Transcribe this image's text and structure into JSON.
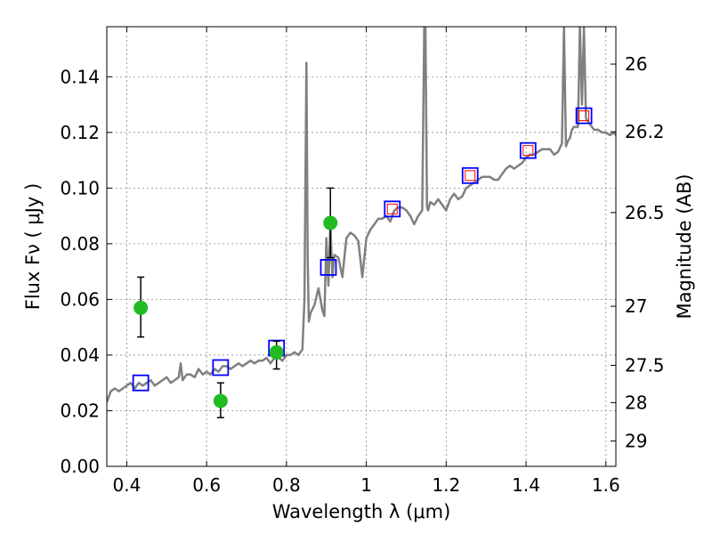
{
  "chart_data": {
    "type": "scatter",
    "title": "",
    "xlabel": "Wavelength  λ (μm)",
    "ylabel": "Flux  Fν  ( μJy )",
    "ylabel_right": "Magnitude (AB)",
    "xlim": [
      0.35,
      1.625
    ],
    "ylim": [
      0.0,
      0.158
    ],
    "grid": true,
    "x_ticks": [
      {
        "value": 0.4,
        "label": "0.4"
      },
      {
        "value": 0.6,
        "label": "0.6"
      },
      {
        "value": 0.8,
        "label": "0.8"
      },
      {
        "value": 1.0,
        "label": "1"
      },
      {
        "value": 1.2,
        "label": "1.2"
      },
      {
        "value": 1.4,
        "label": "1.4"
      },
      {
        "value": 1.6,
        "label": "1.6"
      }
    ],
    "y_ticks": [
      {
        "value": 0.0,
        "label": "0.00"
      },
      {
        "value": 0.02,
        "label": "0.02"
      },
      {
        "value": 0.04,
        "label": "0.04"
      },
      {
        "value": 0.06,
        "label": "0.06"
      },
      {
        "value": 0.08,
        "label": "0.08"
      },
      {
        "value": 0.1,
        "label": "0.10"
      },
      {
        "value": 0.12,
        "label": "0.12"
      },
      {
        "value": 0.14,
        "label": "0.14"
      }
    ],
    "mag_ticks": [
      {
        "value": 26.0,
        "label": "26"
      },
      {
        "value": 26.2,
        "label": "26.2"
      },
      {
        "value": 26.5,
        "label": "26.5"
      },
      {
        "value": 27.0,
        "label": "27"
      },
      {
        "value": 27.5,
        "label": "27.5"
      },
      {
        "value": 28.0,
        "label": "28"
      },
      {
        "value": 29.0,
        "label": "29"
      }
    ],
    "colors": {
      "sed": "#808080",
      "observed": "#22bb22",
      "model_box": "#0000ff",
      "model_box_inner": "#ff0000",
      "errorbar": "#000000",
      "grid": "#888888"
    },
    "sed_spectrum": {
      "x": [
        0.35,
        0.36,
        0.37,
        0.38,
        0.39,
        0.4,
        0.41,
        0.42,
        0.43,
        0.44,
        0.45,
        0.46,
        0.47,
        0.48,
        0.49,
        0.5,
        0.51,
        0.52,
        0.53,
        0.535,
        0.54,
        0.55,
        0.56,
        0.57,
        0.58,
        0.59,
        0.6,
        0.61,
        0.62,
        0.63,
        0.64,
        0.65,
        0.66,
        0.67,
        0.68,
        0.69,
        0.7,
        0.71,
        0.72,
        0.73,
        0.74,
        0.75,
        0.76,
        0.77,
        0.78,
        0.79,
        0.8,
        0.81,
        0.82,
        0.83,
        0.84,
        0.845,
        0.85,
        0.853,
        0.856,
        0.86,
        0.87,
        0.88,
        0.89,
        0.895,
        0.9,
        0.905,
        0.91,
        0.915,
        0.92,
        0.93,
        0.94,
        0.95,
        0.96,
        0.97,
        0.98,
        0.99,
        1.0,
        1.01,
        1.02,
        1.03,
        1.04,
        1.05,
        1.06,
        1.07,
        1.08,
        1.09,
        1.1,
        1.11,
        1.12,
        1.13,
        1.14,
        1.145,
        1.148,
        1.152,
        1.155,
        1.16,
        1.17,
        1.18,
        1.19,
        1.2,
        1.21,
        1.22,
        1.23,
        1.24,
        1.25,
        1.26,
        1.27,
        1.28,
        1.29,
        1.3,
        1.31,
        1.32,
        1.33,
        1.34,
        1.35,
        1.36,
        1.37,
        1.38,
        1.39,
        1.4,
        1.41,
        1.42,
        1.43,
        1.44,
        1.45,
        1.46,
        1.47,
        1.48,
        1.49,
        1.495,
        1.5,
        1.505,
        1.51,
        1.515,
        1.52,
        1.53,
        1.535,
        1.54,
        1.545,
        1.55,
        1.56,
        1.57,
        1.58,
        1.59,
        1.6,
        1.61,
        1.62,
        1.625
      ],
      "y": [
        0.023,
        0.027,
        0.028,
        0.027,
        0.028,
        0.029,
        0.03,
        0.028,
        0.03,
        0.029,
        0.03,
        0.031,
        0.029,
        0.03,
        0.031,
        0.032,
        0.03,
        0.031,
        0.032,
        0.037,
        0.031,
        0.033,
        0.033,
        0.032,
        0.035,
        0.033,
        0.034,
        0.033,
        0.035,
        0.034,
        0.036,
        0.036,
        0.035,
        0.036,
        0.037,
        0.036,
        0.037,
        0.038,
        0.037,
        0.038,
        0.038,
        0.039,
        0.037,
        0.039,
        0.039,
        0.038,
        0.04,
        0.04,
        0.041,
        0.04,
        0.042,
        0.06,
        0.145,
        0.075,
        0.052,
        0.055,
        0.058,
        0.064,
        0.056,
        0.054,
        0.082,
        0.065,
        0.087,
        0.068,
        0.076,
        0.075,
        0.068,
        0.082,
        0.084,
        0.083,
        0.081,
        0.068,
        0.082,
        0.085,
        0.087,
        0.089,
        0.089,
        0.09,
        0.088,
        0.092,
        0.093,
        0.093,
        0.092,
        0.09,
        0.087,
        0.09,
        0.092,
        0.158,
        0.158,
        0.093,
        0.092,
        0.095,
        0.094,
        0.096,
        0.094,
        0.092,
        0.096,
        0.098,
        0.096,
        0.097,
        0.1,
        0.101,
        0.102,
        0.103,
        0.104,
        0.104,
        0.104,
        0.103,
        0.103,
        0.105,
        0.107,
        0.108,
        0.107,
        0.108,
        0.109,
        0.111,
        0.112,
        0.112,
        0.113,
        0.114,
        0.114,
        0.114,
        0.112,
        0.113,
        0.116,
        0.158,
        0.115,
        0.117,
        0.118,
        0.121,
        0.122,
        0.122,
        0.158,
        0.13,
        0.158,
        0.125,
        0.123,
        0.121,
        0.121,
        0.12,
        0.12,
        0.119,
        0.12,
        0.119
      ]
    },
    "observed_points": [
      {
        "x": 0.435,
        "y": 0.057,
        "yerr_low": 0.0465,
        "yerr_high": 0.068
      },
      {
        "x": 0.635,
        "y": 0.0235,
        "yerr_low": 0.0175,
        "yerr_high": 0.03
      },
      {
        "x": 0.775,
        "y": 0.041,
        "yerr_low": 0.035,
        "yerr_high": 0.045
      },
      {
        "x": 0.91,
        "y": 0.0875,
        "yerr_low": 0.075,
        "yerr_high": 0.1
      }
    ],
    "model_points": [
      {
        "x": 0.435,
        "y": 0.03,
        "inner": false
      },
      {
        "x": 0.635,
        "y": 0.0355,
        "inner": false
      },
      {
        "x": 0.775,
        "y": 0.0425,
        "inner": false
      },
      {
        "x": 0.905,
        "y": 0.0715,
        "inner": false
      },
      {
        "x": 1.065,
        "y": 0.0925,
        "inner": true
      },
      {
        "x": 1.26,
        "y": 0.1045,
        "inner": true
      },
      {
        "x": 1.405,
        "y": 0.1135,
        "inner": true
      },
      {
        "x": 1.545,
        "y": 0.126,
        "inner": true
      }
    ]
  }
}
